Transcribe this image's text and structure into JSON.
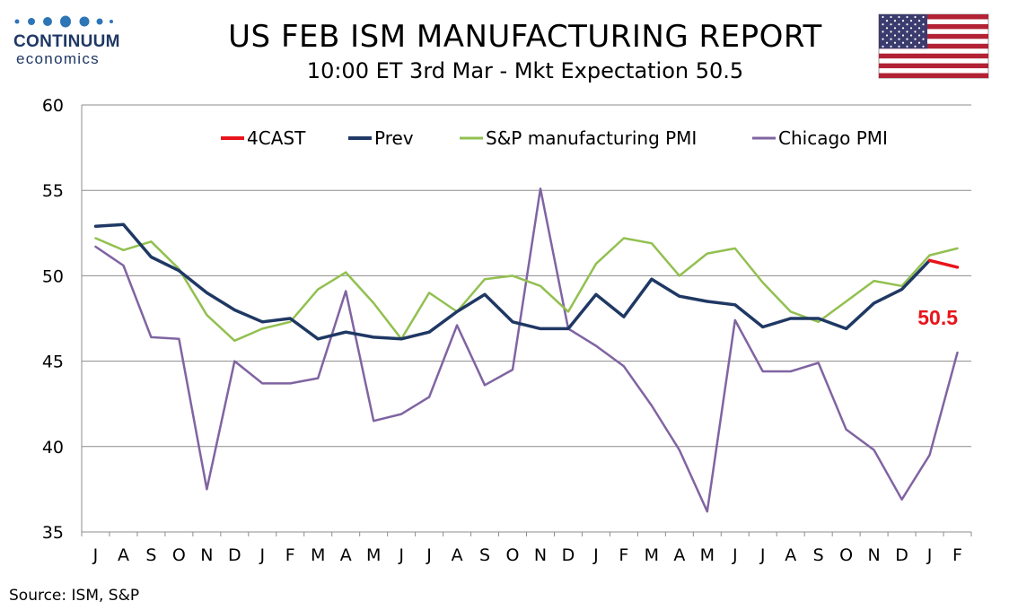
{
  "title": "US FEB ISM MANUFACTURING REPORT",
  "subtitle": "10:00 ET 3rd Mar - Mkt Expectation 50.5",
  "source": "Source: ISM, S&P",
  "logo": {
    "name": "CONTINUUM",
    "sub": "economics"
  },
  "flag": "us-flag",
  "chart_data": {
    "type": "line",
    "title": "US FEB ISM MANUFACTURING REPORT",
    "subtitle": "10:00 ET 3rd Mar - Mkt Expectation 50.5",
    "categories": [
      "J",
      "A",
      "S",
      "O",
      "N",
      "D",
      "J",
      "F",
      "M",
      "A",
      "M",
      "J",
      "J",
      "A",
      "S",
      "O",
      "N",
      "D",
      "J",
      "F",
      "M",
      "A",
      "M",
      "J",
      "J",
      "A",
      "S",
      "O",
      "N",
      "D",
      "J",
      "F"
    ],
    "ylim": [
      35,
      60
    ],
    "yticks": [
      35,
      40,
      45,
      50,
      55,
      60
    ],
    "grid": true,
    "legend_position": "top",
    "series": [
      {
        "name": "4CAST",
        "color": "#e8141b",
        "values": [
          null,
          null,
          null,
          null,
          null,
          null,
          null,
          null,
          null,
          null,
          null,
          null,
          null,
          null,
          null,
          null,
          null,
          null,
          null,
          null,
          null,
          null,
          null,
          null,
          null,
          null,
          null,
          null,
          null,
          null,
          50.9,
          50.5
        ]
      },
      {
        "name": "Prev",
        "color": "#1f3864",
        "values": [
          52.9,
          53.0,
          51.1,
          50.3,
          49.0,
          48.0,
          47.3,
          47.5,
          46.3,
          46.7,
          46.4,
          46.3,
          46.7,
          47.9,
          48.9,
          47.3,
          46.9,
          46.9,
          48.9,
          47.6,
          49.8,
          48.8,
          48.5,
          48.3,
          47.0,
          47.5,
          47.5,
          46.9,
          48.4,
          49.2,
          50.9,
          null
        ]
      },
      {
        "name": "S&P manufacturing PMI",
        "color": "#92c050",
        "values": [
          52.2,
          51.5,
          52.0,
          50.4,
          47.7,
          46.2,
          46.9,
          47.3,
          49.2,
          50.2,
          48.4,
          46.3,
          49.0,
          47.9,
          49.8,
          50.0,
          49.4,
          47.9,
          50.7,
          52.2,
          51.9,
          50.0,
          51.3,
          51.6,
          49.6,
          47.9,
          47.3,
          48.5,
          49.7,
          49.4,
          51.2,
          51.6
        ]
      },
      {
        "name": "Chicago PMI",
        "color": "#8064a2",
        "values": [
          51.7,
          50.6,
          46.4,
          46.3,
          37.5,
          45.0,
          43.7,
          43.7,
          44.0,
          49.1,
          41.5,
          41.9,
          42.9,
          47.1,
          43.6,
          44.5,
          55.1,
          46.9,
          45.9,
          44.7,
          42.4,
          39.8,
          36.2,
          47.4,
          44.4,
          44.4,
          44.9,
          41.0,
          39.8,
          36.9,
          39.5,
          45.5
        ]
      }
    ],
    "annotations": [
      {
        "text": "50.5",
        "color": "#e8141b",
        "series": "4CAST",
        "category_index": 31
      }
    ]
  }
}
